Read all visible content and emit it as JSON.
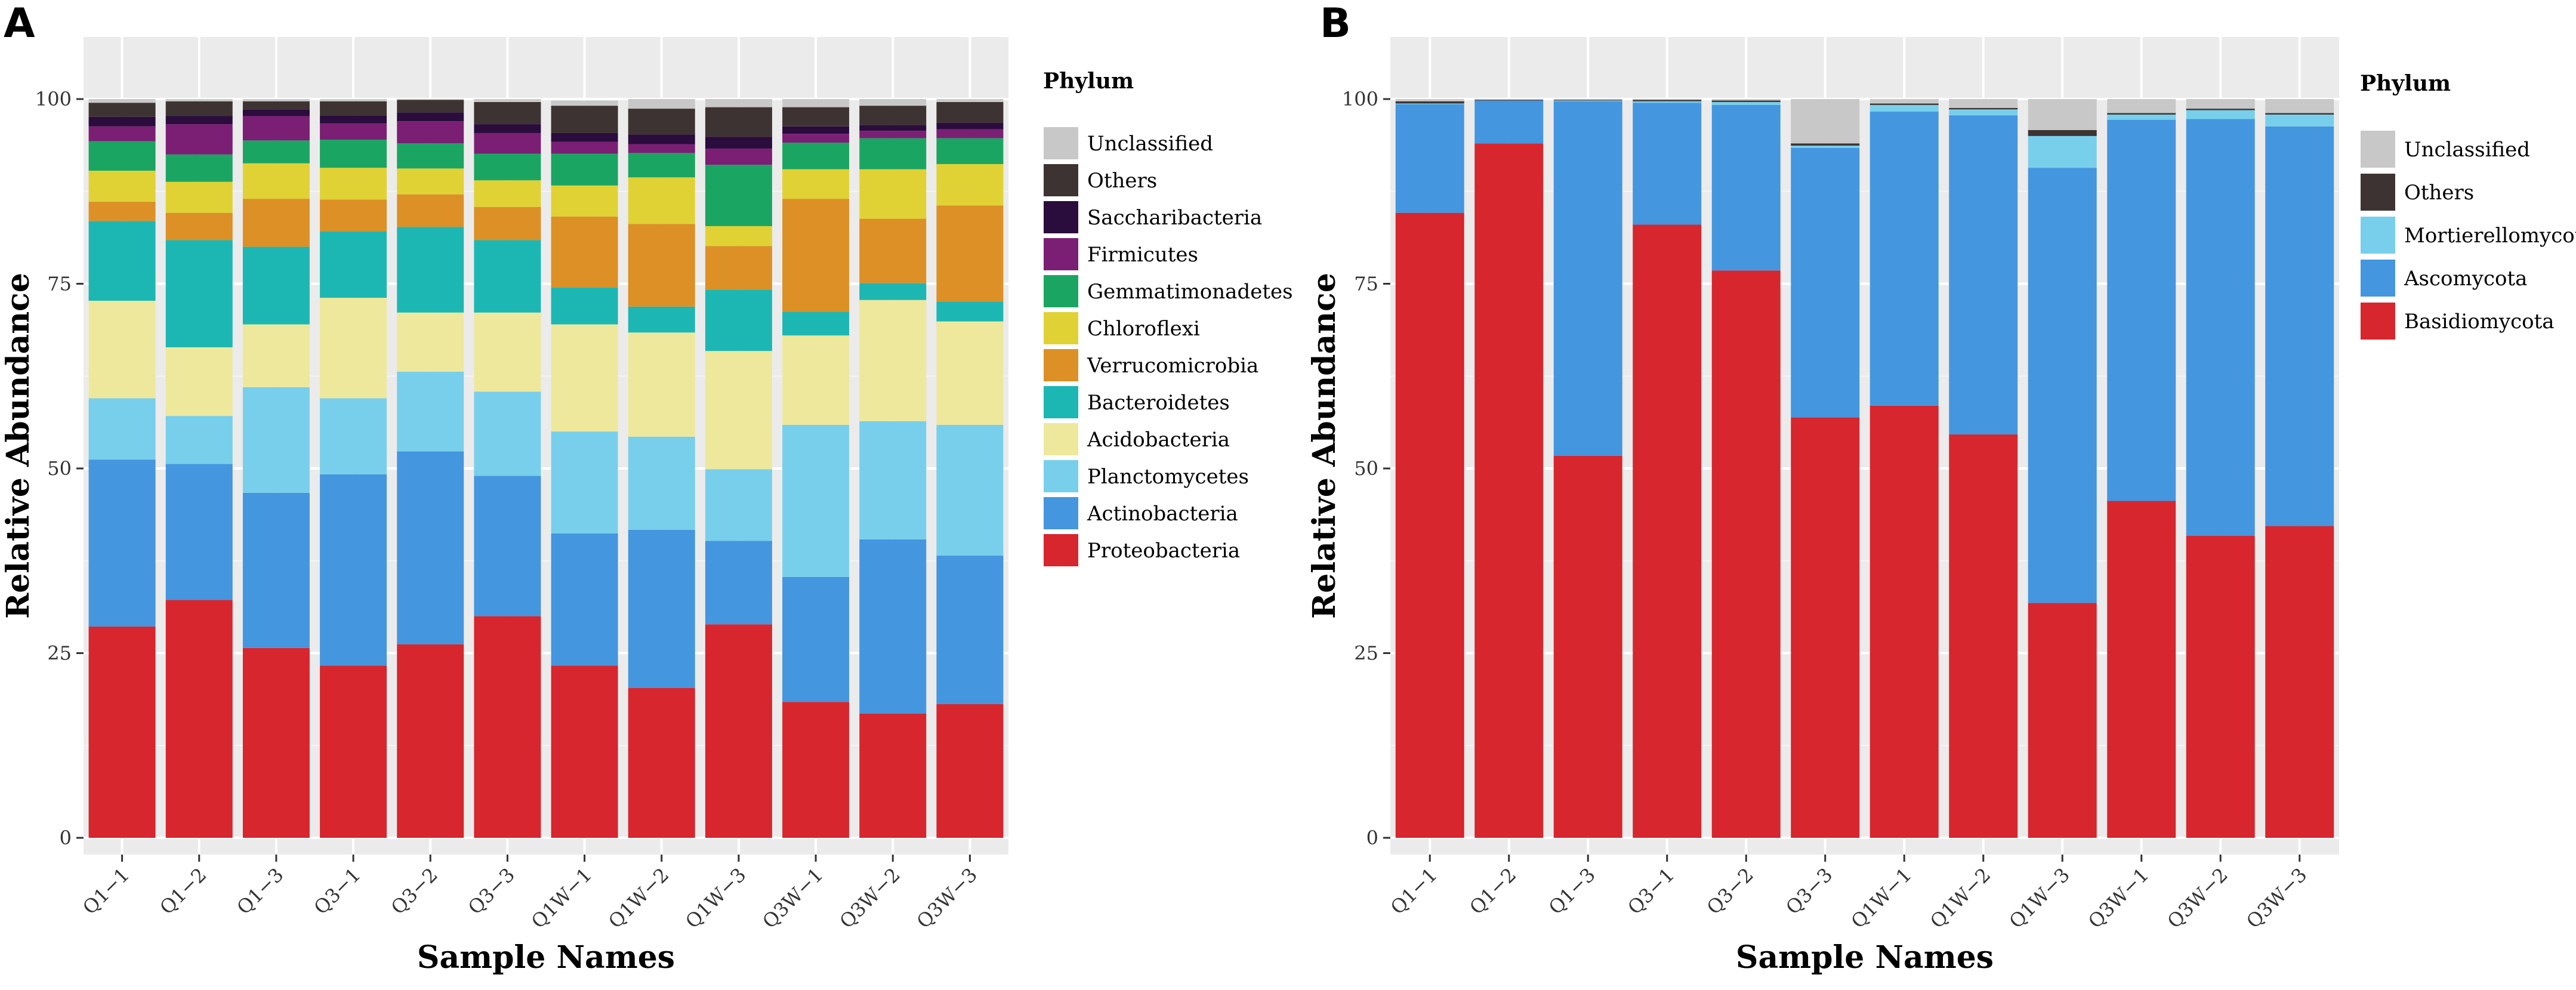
{
  "chart_data": [
    {
      "panel_label": "A",
      "type": "bar",
      "stacked": true,
      "xlabel": "Sample Names",
      "ylabel": "Relative Abundance",
      "ylim": [
        0,
        100
      ],
      "yticks": [
        0,
        25,
        50,
        75,
        100
      ],
      "categories": [
        "Q1−1",
        "Q1−2",
        "Q1−3",
        "Q3−1",
        "Q3−2",
        "Q3−3",
        "Q1W−1",
        "Q1W−2",
        "Q1W−3",
        "Q3W−1",
        "Q3W−2",
        "Q3W−3"
      ],
      "legend_title": "Phylum",
      "legend_position": "right",
      "grid": true,
      "series": [
        {
          "name": "Proteobacteria",
          "color": "#D7262E",
          "values": [
            28.6,
            32.2,
            25.7,
            23.3,
            26.2,
            30.0,
            23.3,
            20.3,
            28.9,
            18.4,
            16.8,
            18.1
          ]
        },
        {
          "name": "Actinobacteria",
          "color": "#4496DF",
          "values": [
            22.6,
            18.4,
            21.0,
            25.9,
            26.1,
            19.0,
            17.9,
            21.4,
            11.3,
            16.9,
            23.6,
            20.1
          ]
        },
        {
          "name": "Planctomycetes",
          "color": "#78CFEB",
          "values": [
            8.3,
            6.5,
            14.3,
            10.3,
            10.8,
            11.4,
            13.8,
            12.6,
            9.7,
            20.6,
            16.0,
            17.7
          ]
        },
        {
          "name": "Acidobacteria",
          "color": "#EEE89D",
          "values": [
            13.2,
            9.3,
            8.5,
            13.6,
            8.0,
            10.7,
            14.5,
            14.1,
            16.0,
            12.1,
            16.4,
            14.0
          ]
        },
        {
          "name": "Bacteroidetes",
          "color": "#1DB7B3",
          "values": [
            10.8,
            14.5,
            10.5,
            9.0,
            11.6,
            9.8,
            5.0,
            3.5,
            8.3,
            3.2,
            2.3,
            2.7
          ]
        },
        {
          "name": "Verrucomicrobia",
          "color": "#DC9026",
          "values": [
            2.6,
            3.7,
            6.5,
            4.3,
            4.4,
            4.5,
            9.6,
            11.2,
            5.9,
            15.3,
            8.7,
            13.0
          ]
        },
        {
          "name": "Chloroflexi",
          "color": "#E0D234",
          "values": [
            4.2,
            4.2,
            4.8,
            4.3,
            3.5,
            3.6,
            4.2,
            6.3,
            2.7,
            4.0,
            6.7,
            5.6
          ]
        },
        {
          "name": "Gemmatimonadetes",
          "color": "#1BA562",
          "values": [
            4.0,
            3.7,
            3.1,
            3.8,
            3.4,
            3.6,
            4.3,
            3.3,
            8.3,
            3.6,
            4.2,
            3.5
          ]
        },
        {
          "name": "Firmicutes",
          "color": "#7B1F74",
          "values": [
            2.0,
            4.1,
            3.3,
            2.2,
            3.0,
            2.8,
            1.6,
            1.2,
            2.2,
            1.2,
            1.0,
            1.2
          ]
        },
        {
          "name": "Saccharibacteria",
          "color": "#2A0C3D",
          "values": [
            1.3,
            1.1,
            0.9,
            1.1,
            1.2,
            1.2,
            1.2,
            1.3,
            1.6,
            1.0,
            0.8,
            0.9
          ]
        },
        {
          "name": "Others",
          "color": "#3E3333",
          "values": [
            1.9,
            2.0,
            1.1,
            1.9,
            1.7,
            3.0,
            3.7,
            3.5,
            4.0,
            2.6,
            2.6,
            2.8
          ]
        },
        {
          "name": "Unclassified",
          "color": "#C8C8C8",
          "values": [
            0.5,
            0.3,
            0.3,
            0.3,
            0.1,
            0.4,
            0.7,
            1.3,
            1.1,
            1.1,
            0.9,
            0.4
          ]
        }
      ]
    },
    {
      "panel_label": "B",
      "type": "bar",
      "stacked": true,
      "xlabel": "Sample Names",
      "ylabel": "Relative Abundance",
      "ylim": [
        0,
        100
      ],
      "yticks": [
        0,
        25,
        50,
        75,
        100
      ],
      "categories": [
        "Q1−1",
        "Q1−2",
        "Q1−3",
        "Q3−1",
        "Q3−2",
        "Q3−3",
        "Q1W−1",
        "Q1W−2",
        "Q1W−3",
        "Q3W−1",
        "Q3W−2",
        "Q3W−3"
      ],
      "legend_title": "Phylum",
      "legend_position": "right",
      "grid": true,
      "series": [
        {
          "name": "Basidiomycota",
          "color": "#D7262E",
          "values": [
            84.6,
            94.0,
            51.7,
            83.0,
            76.8,
            56.9,
            58.5,
            54.6,
            31.8,
            45.6,
            40.9,
            42.2
          ]
        },
        {
          "name": "Ascomycota",
          "color": "#4496DF",
          "values": [
            14.7,
            5.8,
            48.0,
            16.5,
            22.4,
            36.5,
            39.8,
            43.2,
            58.9,
            51.6,
            56.4,
            54.1
          ]
        },
        {
          "name": "Mortierellomycota",
          "color": "#78CFEB",
          "values": [
            0.1,
            0.0,
            0.1,
            0.2,
            0.4,
            0.3,
            0.9,
            0.8,
            4.3,
            0.7,
            1.2,
            1.6
          ]
        },
        {
          "name": "Others",
          "color": "#3E3333",
          "values": [
            0.3,
            0.1,
            0.1,
            0.2,
            0.2,
            0.3,
            0.2,
            0.2,
            0.8,
            0.2,
            0.2,
            0.2
          ]
        },
        {
          "name": "Unclassified",
          "color": "#C8C8C8",
          "values": [
            0.3,
            0.1,
            0.1,
            0.1,
            0.2,
            6.0,
            0.6,
            1.2,
            4.2,
            1.9,
            1.3,
            1.9
          ]
        }
      ]
    }
  ]
}
